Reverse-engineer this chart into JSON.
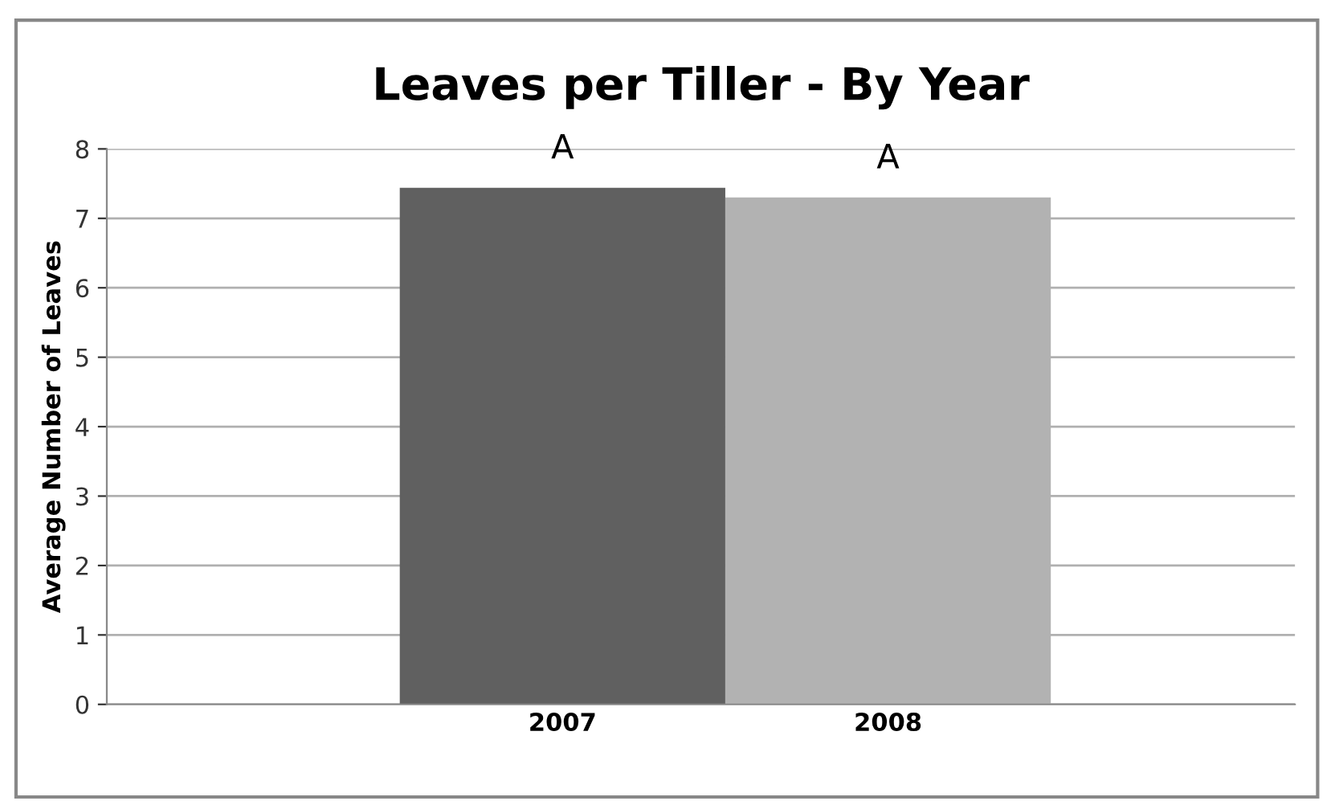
{
  "chart_data": {
    "type": "bar",
    "title": "Leaves per Tiller - By Year",
    "ylabel": "Average Number of Leaves",
    "categories": [
      "2007",
      "2008"
    ],
    "values": [
      7.44,
      7.3
    ],
    "colors": [
      "#606060",
      "#b2b2b2"
    ],
    "ylim": [
      0,
      8
    ],
    "yticks": [
      0,
      1,
      2,
      3,
      4,
      5,
      6,
      7,
      8
    ],
    "grid": "y",
    "legend": false,
    "annotations": [
      "A",
      "A"
    ]
  }
}
